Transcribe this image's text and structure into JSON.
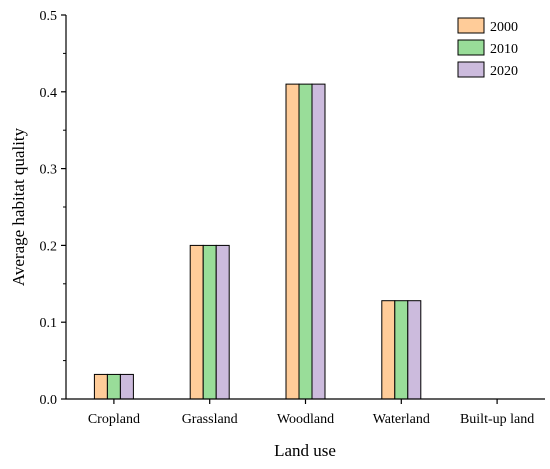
{
  "chart_data": {
    "type": "bar",
    "categories": [
      "Cropland",
      "Grassland",
      "Woodland",
      "Waterland",
      "Built-up land"
    ],
    "series": [
      {
        "name": "2000",
        "values": [
          0.032,
          0.2,
          0.41,
          0.128,
          0
        ],
        "color": "#FFCC99"
      },
      {
        "name": "2010",
        "values": [
          0.032,
          0.2,
          0.41,
          0.128,
          0
        ],
        "color": "#99DD99"
      },
      {
        "name": "2020",
        "values": [
          0.032,
          0.2,
          0.41,
          0.128,
          0
        ],
        "color": "#CCBBDD"
      }
    ],
    "xlabel": "Land use",
    "ylabel": "Average habitat quality",
    "ylim": [
      0,
      0.5
    ],
    "yticks": [
      "0.0",
      "0.1",
      "0.2",
      "0.3",
      "0.4",
      "0.5"
    ],
    "ytick_values": [
      0,
      0.1,
      0.2,
      0.3,
      0.4,
      0.5
    ],
    "grid": false,
    "legend_position": "top-right"
  }
}
